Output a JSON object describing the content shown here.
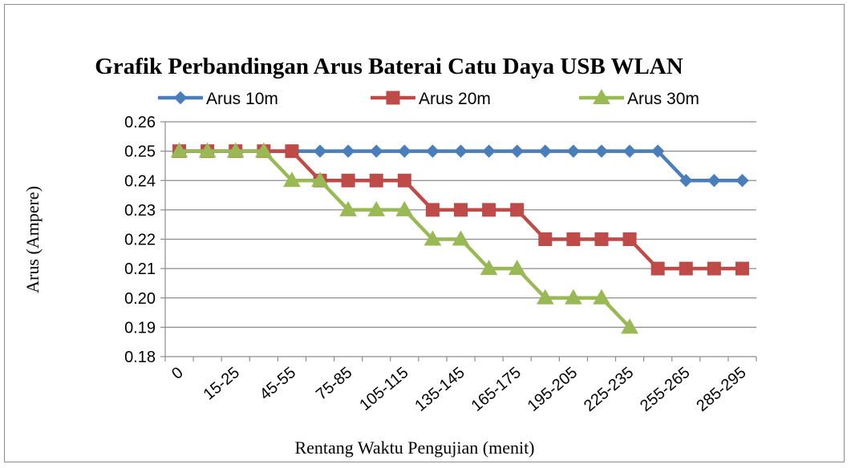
{
  "chart_data": {
    "type": "line",
    "title": "Grafik Perbandingan Arus Baterai Catu Daya USB WLAN",
    "xlabel": "Rentang Waktu Pengujian (menit)",
    "ylabel": "Arus (Ampere)",
    "ylim": [
      0.18,
      0.26
    ],
    "ytick_step": 0.01,
    "grid": true,
    "legend_position": "top",
    "x_tick_labels": [
      "0",
      "15-25",
      "45-55",
      "75-85",
      "105-115",
      "135-145",
      "165-175",
      "195-205",
      "225-235",
      "255-265",
      "285-295"
    ],
    "series": [
      {
        "name": "Arus 10m",
        "color": "#4a7ebb",
        "marker": "diamond",
        "values": [
          0.25,
          0.25,
          0.25,
          0.25,
          0.25,
          0.25,
          0.25,
          0.25,
          0.25,
          0.25,
          0.25,
          0.25,
          0.25,
          0.25,
          0.25,
          0.25,
          0.25,
          0.25,
          0.24,
          0.24,
          0.24
        ]
      },
      {
        "name": "Arus 20m",
        "color": "#be4b48",
        "marker": "square",
        "values": [
          0.25,
          0.25,
          0.25,
          0.25,
          0.25,
          0.24,
          0.24,
          0.24,
          0.24,
          0.23,
          0.23,
          0.23,
          0.23,
          0.22,
          0.22,
          0.22,
          0.22,
          0.21,
          0.21,
          0.21,
          0.21
        ]
      },
      {
        "name": "Arus 30m",
        "color": "#98b954",
        "marker": "triangle",
        "values": [
          0.25,
          0.25,
          0.25,
          0.25,
          0.24,
          0.24,
          0.23,
          0.23,
          0.23,
          0.22,
          0.22,
          0.21,
          0.21,
          0.2,
          0.2,
          0.2,
          0.19
        ]
      }
    ]
  }
}
